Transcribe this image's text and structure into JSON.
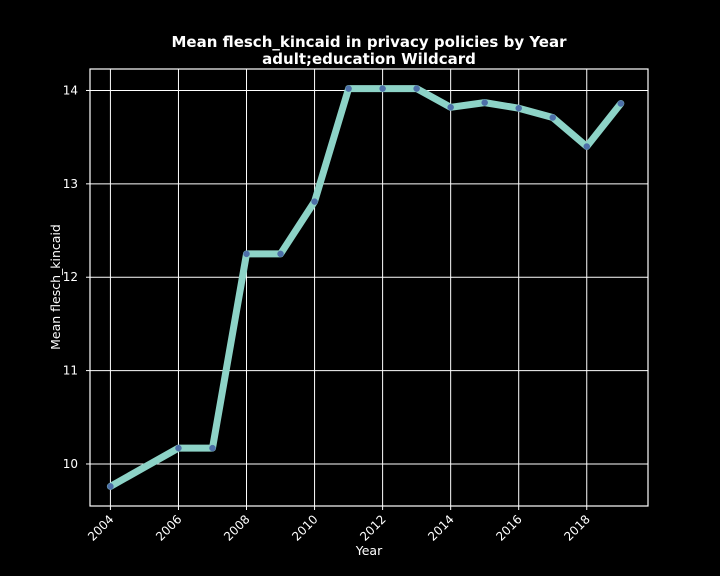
{
  "chart_data": {
    "type": "line",
    "title": "Mean flesch_kincaid in privacy policies by Year",
    "subtitle": "adult;education Wildcard",
    "xlabel": "Year",
    "ylabel": "Mean flesch_kincaid",
    "x": [
      2004,
      2006,
      2007,
      2008,
      2009,
      2010,
      2011,
      2012,
      2013,
      2014,
      2015,
      2016,
      2017,
      2018,
      2019
    ],
    "series": [
      {
        "values": [
          9.76,
          10.17,
          10.17,
          12.25,
          12.25,
          12.81,
          14.02,
          14.02,
          14.02,
          13.82,
          13.87,
          13.81,
          13.71,
          13.4,
          13.86
        ]
      }
    ],
    "xlim": [
      2003.4,
      2019.8
    ],
    "ylim": [
      9.55,
      14.23
    ],
    "xticks": [
      "2004",
      "2006",
      "2008",
      "2010",
      "2012",
      "2014",
      "2016",
      "2018"
    ],
    "yticks": [
      "10",
      "11",
      "12",
      "13",
      "14"
    ],
    "grid": true,
    "background": "#000000",
    "colors": {
      "line": "#8dd3c7",
      "marker": "#4d6fa8",
      "grid": "#ffffff",
      "frame": "#ffffff",
      "text": "#ffffff"
    }
  }
}
